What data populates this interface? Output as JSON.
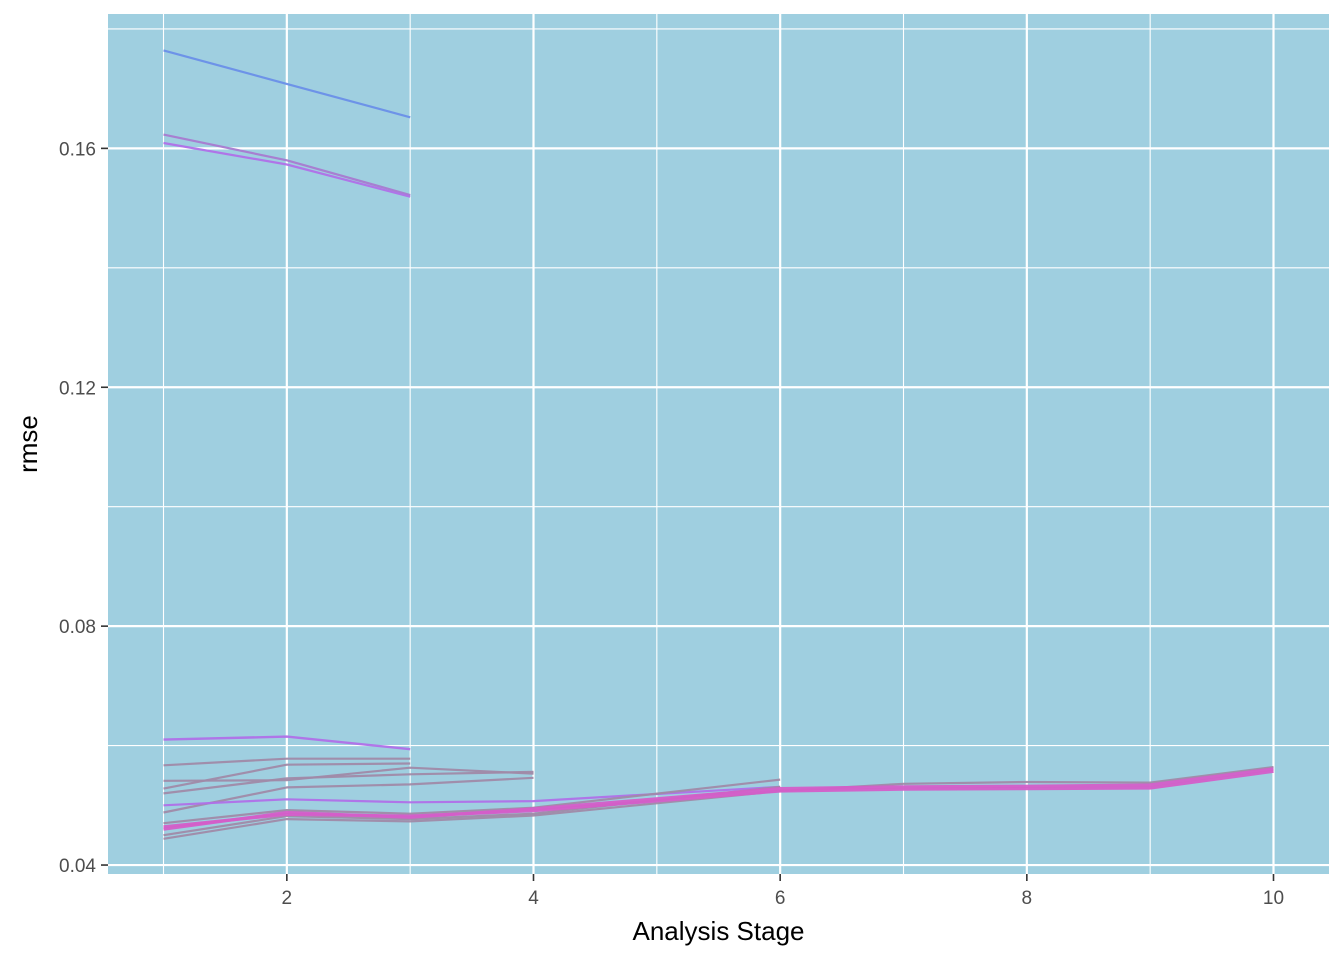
{
  "chart_data": {
    "type": "line",
    "xlabel": "Analysis Stage",
    "ylabel": "rmse",
    "xlim": [
      0.55,
      10.45
    ],
    "ylim": [
      0.0385,
      0.1825
    ],
    "x_ticks": [
      2,
      4,
      6,
      8,
      10
    ],
    "y_ticks": [
      0.04,
      0.08,
      0.12,
      0.16
    ],
    "x_tick_labels": [
      "2",
      "4",
      "6",
      "8",
      "10"
    ],
    "y_tick_labels": [
      "0.04",
      "0.08",
      "0.12",
      "0.16"
    ],
    "x_minor_ticks": [
      1,
      3,
      5,
      7,
      9
    ],
    "y_minor_ticks": [
      0.06,
      0.1,
      0.14,
      0.18
    ],
    "grid": true,
    "legend": "none",
    "colors": {
      "panel_background": "#9fcfe0",
      "grid": "#ffffff",
      "blue": "#6a8fe8",
      "purple": "#b070e8",
      "violet": "#a87ad0",
      "grey_mauve": "#a08aa8",
      "magenta": "#d45ec8"
    },
    "series": [
      {
        "color": "#6a8fe8",
        "width": 2.2,
        "points": [
          [
            1,
            0.1764
          ],
          [
            2,
            0.1708
          ],
          [
            3,
            0.1652
          ]
        ]
      },
      {
        "color": "#a87ad0",
        "width": 2.2,
        "points": [
          [
            1,
            0.1623
          ],
          [
            2,
            0.158
          ],
          [
            3,
            0.1522
          ]
        ]
      },
      {
        "color": "#b070e8",
        "width": 2.2,
        "points": [
          [
            1,
            0.1609
          ],
          [
            2,
            0.1573
          ],
          [
            3,
            0.1519
          ]
        ]
      },
      {
        "color": "#b070e8",
        "width": 2.4,
        "points": [
          [
            1,
            0.061
          ],
          [
            2,
            0.0615
          ],
          [
            3,
            0.0594
          ]
        ]
      },
      {
        "color": "#a08aa8",
        "width": 2.2,
        "points": [
          [
            1,
            0.0567
          ],
          [
            2,
            0.0578
          ],
          [
            3,
            0.0578
          ]
        ]
      },
      {
        "color": "#a08aa8",
        "width": 2.2,
        "points": [
          [
            1,
            0.0541
          ],
          [
            2,
            0.0542
          ],
          [
            3,
            0.0563
          ],
          [
            4,
            0.0553
          ]
        ]
      },
      {
        "color": "#a08aa8",
        "width": 2.2,
        "points": [
          [
            1,
            0.0528
          ],
          [
            2,
            0.0568
          ],
          [
            3,
            0.057
          ]
        ]
      },
      {
        "color": "#a08aa8",
        "width": 2.2,
        "points": [
          [
            1,
            0.052
          ],
          [
            2,
            0.0545
          ],
          [
            3,
            0.0552
          ],
          [
            4,
            0.0556
          ]
        ]
      },
      {
        "color": "#a08aa8",
        "width": 2.2,
        "points": [
          [
            1,
            0.0488
          ],
          [
            2,
            0.053
          ],
          [
            3,
            0.0535
          ],
          [
            4,
            0.0546
          ]
        ]
      },
      {
        "color": "#b070e8",
        "width": 2.2,
        "points": [
          [
            1,
            0.05
          ],
          [
            2,
            0.051
          ],
          [
            3,
            0.0505
          ],
          [
            4,
            0.0507
          ],
          [
            6,
            0.0531
          ]
        ]
      },
      {
        "color": "#a08aa8",
        "width": 2.2,
        "points": [
          [
            1,
            0.047
          ],
          [
            2,
            0.0492
          ],
          [
            3,
            0.0486
          ],
          [
            4,
            0.0496
          ],
          [
            6,
            0.0543
          ]
        ]
      },
      {
        "color": "#a08aa8",
        "width": 2.2,
        "points": [
          [
            1,
            0.045
          ],
          [
            2,
            0.0482
          ],
          [
            3,
            0.0477
          ],
          [
            4,
            0.0486
          ],
          [
            6,
            0.0531
          ]
        ]
      },
      {
        "color": "#a08aa8",
        "width": 2.2,
        "points": [
          [
            1,
            0.0444
          ],
          [
            2,
            0.0477
          ],
          [
            3,
            0.0473
          ],
          [
            4,
            0.0483
          ],
          [
            6,
            0.0524
          ],
          [
            7,
            0.0536
          ],
          [
            8,
            0.0539
          ],
          [
            9,
            0.0538
          ],
          [
            10,
            0.0564
          ]
        ]
      },
      {
        "color": "#d45ec8",
        "width": 3.2,
        "points": [
          [
            1,
            0.0464
          ],
          [
            2,
            0.0485
          ],
          [
            3,
            0.0482
          ],
          [
            4,
            0.0491
          ],
          [
            6,
            0.0524
          ],
          [
            7,
            0.0527
          ],
          [
            8,
            0.0528
          ],
          [
            9,
            0.0529
          ],
          [
            10,
            0.0557
          ]
        ]
      },
      {
        "color": "#d45ec8",
        "width": 3.2,
        "points": [
          [
            1,
            0.046
          ],
          [
            2,
            0.0488
          ],
          [
            3,
            0.048
          ],
          [
            4,
            0.0494
          ],
          [
            6,
            0.0528
          ],
          [
            7,
            0.0531
          ],
          [
            8,
            0.0532
          ],
          [
            9,
            0.0534
          ],
          [
            10,
            0.0561
          ]
        ]
      }
    ]
  }
}
